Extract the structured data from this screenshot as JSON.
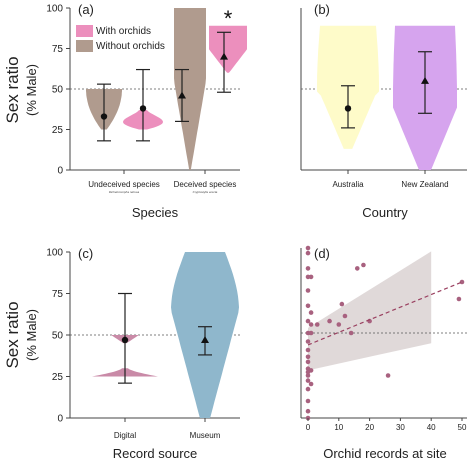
{
  "y_axis_label": "Sex ratio",
  "y_axis_sublabel": "(% Male)",
  "chart_data": [
    {
      "panel": "(a)",
      "type": "violin",
      "xlabel": "Species",
      "ylim": [
        0,
        100
      ],
      "yticks": [
        0,
        25,
        50,
        75,
        100
      ],
      "reference_line": 50,
      "categories": [
        "Undeceived species",
        "Deceived species"
      ],
      "category_sublabels": [
        "Dichelomorpha retrusa",
        "Cryptostylis erecta"
      ],
      "legend": [
        "With orchids",
        "Without orchids"
      ],
      "series": [
        {
          "name": "Without orchids",
          "color": "#b09b8e",
          "values": [
            {
              "category": "Undeceived species",
              "mean": 33,
              "lower": 18,
              "upper": 53,
              "range": [
                25,
                50
              ]
            },
            {
              "category": "Deceived species",
              "mean": 46,
              "lower": 30,
              "upper": 62,
              "range": [
                0,
                100
              ]
            }
          ]
        },
        {
          "name": "With orchids",
          "color": "#ec8fbd",
          "values": [
            {
              "category": "Undeceived species",
              "mean": 38,
              "lower": 18,
              "upper": 62,
              "range": [
                25,
                37
              ]
            },
            {
              "category": "Deceived species",
              "mean": 70,
              "lower": 48,
              "upper": 85,
              "range": [
                60,
                89
              ]
            }
          ]
        }
      ],
      "annotation": "*"
    },
    {
      "panel": "(b)",
      "type": "violin",
      "xlabel": "Country",
      "ylim": [
        0,
        100
      ],
      "reference_line": 50,
      "categories": [
        "Australia",
        "New Zealand"
      ],
      "series": [
        {
          "color": "#fefbc9",
          "values": [
            {
              "category": "Australia",
              "mean": 38,
              "lower": 26,
              "upper": 52,
              "range": [
                13,
                89
              ]
            },
            {
              "category": "New Zealand",
              "mean": 55,
              "lower": 35,
              "upper": 73,
              "range": [
                0,
                89
              ]
            }
          ]
        }
      ],
      "colors": {
        "Australia": "#fefbc9",
        "New Zealand": "#d6a4ee"
      }
    },
    {
      "panel": "(c)",
      "type": "violin",
      "xlabel": "Record source",
      "ylim": [
        0,
        100
      ],
      "yticks": [
        0,
        25,
        50,
        75,
        100
      ],
      "reference_line": 50,
      "categories": [
        "Digital",
        "Museum"
      ],
      "series": [
        {
          "values": [
            {
              "category": "Digital",
              "mean": 47,
              "lower": 21,
              "upper": 75,
              "range": [
                25,
                50
              ]
            },
            {
              "category": "Museum",
              "mean": 47,
              "lower": 38,
              "upper": 55,
              "range": [
                0,
                100
              ]
            }
          ]
        }
      ],
      "colors": {
        "Digital": "#c98aa7",
        "Museum": "#8fb7cc"
      }
    },
    {
      "panel": "(d)",
      "type": "scatter",
      "xlabel": "Orchid records at site",
      "xlim": [
        -2,
        53
      ],
      "xticks": [
        0,
        10,
        20,
        30,
        40,
        50
      ],
      "ylim": [
        0,
        100
      ],
      "reference_line": 50,
      "points": [
        [
          0,
          100
        ],
        [
          0,
          97
        ],
        [
          0,
          88
        ],
        [
          0,
          83
        ],
        [
          0,
          75
        ],
        [
          0,
          66
        ],
        [
          0,
          57
        ],
        [
          0,
          50
        ],
        [
          0,
          45
        ],
        [
          0,
          40
        ],
        [
          0,
          36
        ],
        [
          0,
          33
        ],
        [
          0,
          29
        ],
        [
          0,
          27
        ],
        [
          0,
          25
        ],
        [
          0,
          22
        ],
        [
          0,
          17
        ],
        [
          0,
          10
        ],
        [
          0,
          4
        ],
        [
          0,
          0
        ],
        [
          1,
          83
        ],
        [
          1,
          62
        ],
        [
          1,
          55
        ],
        [
          1,
          50
        ],
        [
          1,
          28
        ],
        [
          1,
          20
        ],
        [
          3,
          55
        ],
        [
          7,
          57
        ],
        [
          10,
          55
        ],
        [
          11,
          67
        ],
        [
          12,
          60
        ],
        [
          14,
          50
        ],
        [
          16,
          88
        ],
        [
          18,
          90
        ],
        [
          20,
          57
        ],
        [
          26,
          25
        ],
        [
          49,
          70
        ],
        [
          50,
          80
        ]
      ],
      "trend": {
        "x": [
          0,
          50
        ],
        "y": [
          43,
          80
        ]
      },
      "ci_band": {
        "x": [
          0,
          40
        ],
        "lower": [
          28,
          44
        ],
        "upper": [
          53,
          98
        ]
      },
      "colors": {
        "points": "#a8617f",
        "band": "#d8cfcf"
      }
    }
  ]
}
